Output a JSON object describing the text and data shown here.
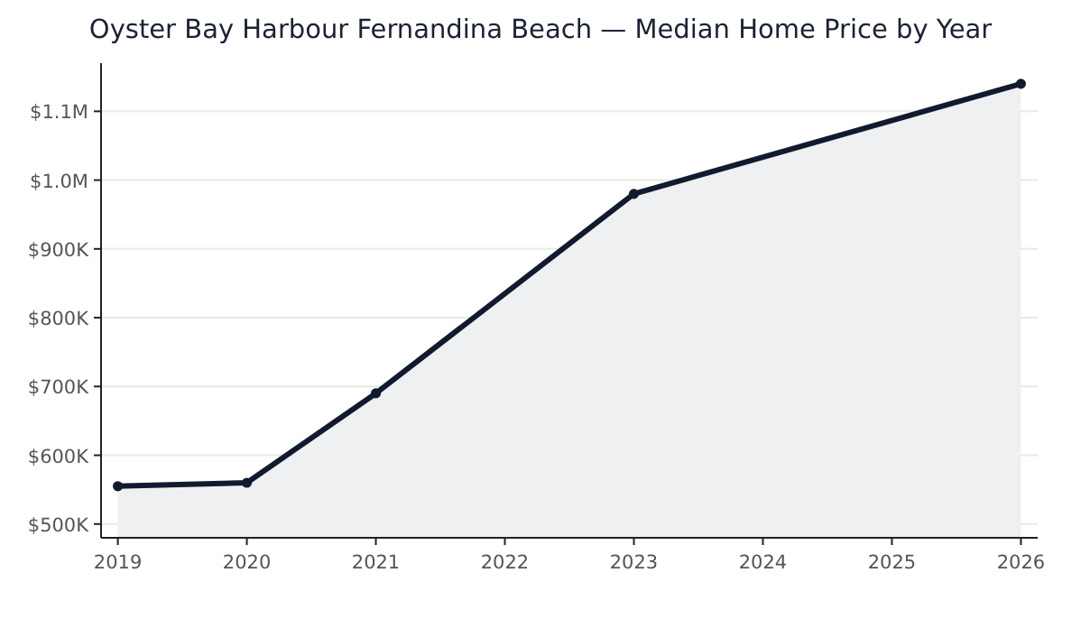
{
  "chart_data": {
    "type": "area",
    "title": "Oyster Bay Harbour Fernandina Beach — Median Home Price by Year",
    "x": [
      2019,
      2020,
      2021,
      2023,
      2026
    ],
    "series": [
      {
        "color": "#111a2e",
        "values": [
          555000,
          560000,
          690000,
          980000,
          1140000
        ]
      }
    ],
    "xlim": [
      2018.87,
      2026.13
    ],
    "xticks": [
      2019,
      2020,
      2021,
      2022,
      2023,
      2024,
      2025,
      2026
    ],
    "ylim": [
      480000,
      1170000
    ],
    "yticks": [
      {
        "value": 500000,
        "label": "$500K"
      },
      {
        "value": 600000,
        "label": "$600K"
      },
      {
        "value": 700000,
        "label": "$700K"
      },
      {
        "value": 800000,
        "label": "$800K"
      },
      {
        "value": 900000,
        "label": "$900K"
      },
      {
        "value": 1000000,
        "label": "$1.0M"
      },
      {
        "value": 1100000,
        "label": "$1.1M"
      }
    ],
    "grid": "y",
    "marker": "circle",
    "line_style": "solid"
  }
}
